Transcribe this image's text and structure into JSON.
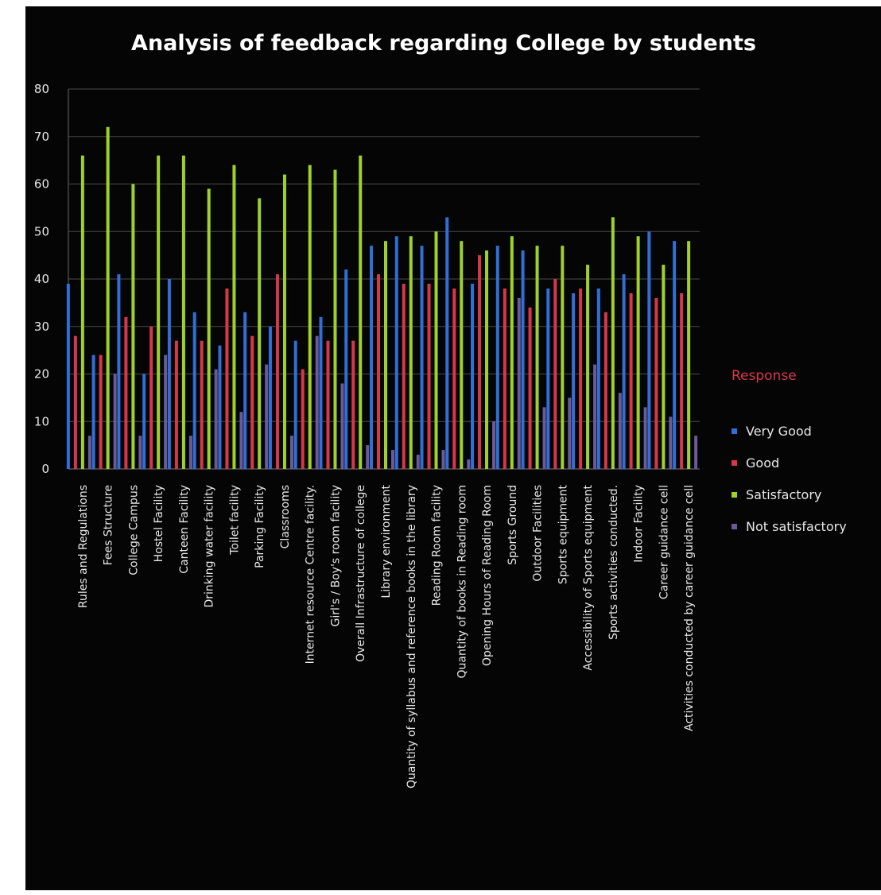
{
  "chart_data": {
    "type": "bar",
    "title": "Analysis of feedback regarding College by students",
    "xlabel": "",
    "ylabel": "",
    "ylim": [
      0,
      80
    ],
    "yticks": [
      0,
      10,
      20,
      30,
      40,
      50,
      60,
      70,
      80
    ],
    "grid": true,
    "legend_title": "Response",
    "legend_position": "right",
    "categories": [
      "Rules and Regulations",
      "Fees Structure",
      "College Campus",
      "Hostel Facility",
      "Canteen Facility",
      "Drinking water facility",
      "Toilet facility",
      "Parking Facility",
      "Classrooms",
      "Internet resource Centre facility.",
      "Girl's / Boy's room facility",
      "Overall Infrastructure of college",
      "Library environment",
      "Quantity of syllabus and reference books in the library",
      "Reading Room facility",
      "Quantity of books in Reading room",
      "Opening Hours of Reading Room",
      "Sports Ground",
      "Outdoor Facilities",
      "Sports equipment",
      "Accessibility of Sports equipment",
      "Sports activities conducted.",
      "Indoor Facility",
      "Career guidance cell",
      "Activities conducted by career guidance cell"
    ],
    "series": [
      {
        "name": "Very Good",
        "color": "#2f6fd6",
        "values": [
          39,
          24,
          41,
          20,
          40,
          33,
          26,
          33,
          30,
          27,
          32,
          42,
          47,
          49,
          47,
          53,
          39,
          47,
          46,
          38,
          37,
          38,
          41,
          50,
          48
        ]
      },
      {
        "name": "Good",
        "color": "#d6384a",
        "values": [
          28,
          24,
          32,
          30,
          27,
          27,
          38,
          28,
          41,
          21,
          27,
          27,
          41,
          39,
          39,
          38,
          45,
          38,
          34,
          40,
          38,
          33,
          37,
          36,
          37
        ]
      },
      {
        "name": "Satisfactory",
        "color": "#9fd12a",
        "values": [
          66,
          72,
          60,
          66,
          66,
          59,
          64,
          57,
          62,
          64,
          63,
          66,
          48,
          49,
          50,
          48,
          46,
          49,
          47,
          47,
          43,
          53,
          49,
          43,
          48
        ]
      },
      {
        "name": "Not satisfactory",
        "color": "#6b5a9a",
        "values": [
          7,
          20,
          7,
          24,
          7,
          21,
          12,
          22,
          7,
          28,
          18,
          5,
          4,
          3,
          4,
          2,
          10,
          36,
          13,
          15,
          22,
          16,
          13,
          11,
          7
        ]
      }
    ]
  }
}
